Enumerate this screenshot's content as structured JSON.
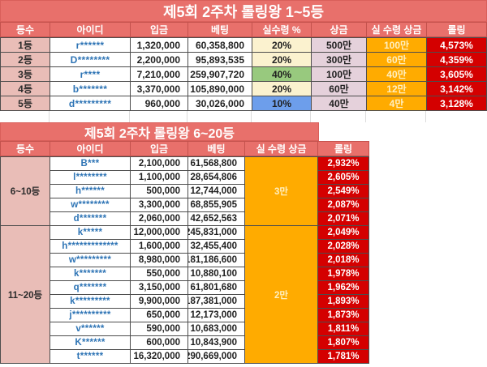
{
  "colors": {
    "band": "#E8706B",
    "rank_bg": "#E9BDB7",
    "prize_bg": "#E5D1DB",
    "net_bg": "#FFAB00",
    "rolling_bg": "#D40000",
    "id_text": "#2E74B5",
    "pct": {
      "cream": "#FBF2CF",
      "green": "#98C97E",
      "blue": "#6D9EEB"
    }
  },
  "table1": {
    "title": "제5회 2주차 롤링왕 1~5등",
    "headers": [
      "등수",
      "아이디",
      "입금",
      "베팅",
      "실수령 %",
      "상금",
      "실 수령 상금",
      "롤링"
    ],
    "rows": [
      {
        "rank": "1등",
        "id": "r******",
        "deposit": "1,320,000",
        "betting": "60,358,800",
        "pct": "20%",
        "pct_bg": "cream",
        "prize": "500만",
        "net": "100만",
        "rolling": "4,573%"
      },
      {
        "rank": "2등",
        "id": "D********",
        "deposit": "2,200,000",
        "betting": "95,893,535",
        "pct": "20%",
        "pct_bg": "cream",
        "prize": "300만",
        "net": "60만",
        "rolling": "4,359%"
      },
      {
        "rank": "3등",
        "id": "r****",
        "deposit": "7,210,000",
        "betting": "259,907,720",
        "pct": "40%",
        "pct_bg": "green",
        "prize": "100만",
        "net": "40만",
        "rolling": "3,605%"
      },
      {
        "rank": "4등",
        "id": "b*******",
        "deposit": "3,370,000",
        "betting": "105,890,000",
        "pct": "20%",
        "pct_bg": "cream",
        "prize": "60만",
        "net": "12만",
        "rolling": "3,142%"
      },
      {
        "rank": "5등",
        "id": "d*********",
        "deposit": "960,000",
        "betting": "30,026,000",
        "pct": "10%",
        "pct_bg": "blue",
        "prize": "40만",
        "net": "4만",
        "rolling": "3,128%"
      }
    ]
  },
  "table2": {
    "title": "제5회 2주차 롤링왕 6~20등",
    "headers": [
      "등수",
      "아이디",
      "입금",
      "베팅",
      "실 수령 상금",
      "롤링"
    ],
    "groups": [
      {
        "rank_label": "6~10등",
        "net": "3만",
        "rows": [
          {
            "id": "B***",
            "deposit": "2,100,000",
            "betting": "61,568,800",
            "rolling": "2,932%"
          },
          {
            "id": "l********",
            "deposit": "1,100,000",
            "betting": "28,654,806",
            "rolling": "2,605%"
          },
          {
            "id": "h******",
            "deposit": "500,000",
            "betting": "12,744,000",
            "rolling": "2,549%"
          },
          {
            "id": "w********",
            "deposit": "3,300,000",
            "betting": "68,855,905",
            "rolling": "2,087%"
          },
          {
            "id": "d*******",
            "deposit": "2,060,000",
            "betting": "42,652,563",
            "rolling": "2,071%"
          }
        ]
      },
      {
        "rank_label": "11~20등",
        "net": "2만",
        "rows": [
          {
            "id": "k*****",
            "deposit": "12,000,000",
            "betting": "245,831,000",
            "rolling": "2,049%"
          },
          {
            "id": "h*************",
            "deposit": "1,600,000",
            "betting": "32,455,400",
            "rolling": "2,028%"
          },
          {
            "id": "w*********",
            "deposit": "8,980,000",
            "betting": "181,186,600",
            "rolling": "2,018%"
          },
          {
            "id": "k*******",
            "deposit": "550,000",
            "betting": "10,880,100",
            "rolling": "1,978%"
          },
          {
            "id": "q*******",
            "deposit": "3,150,000",
            "betting": "61,801,680",
            "rolling": "1,962%"
          },
          {
            "id": "k*********",
            "deposit": "9,900,000",
            "betting": "187,381,000",
            "rolling": "1,893%"
          },
          {
            "id": "j**********",
            "deposit": "650,000",
            "betting": "12,173,000",
            "rolling": "1,873%"
          },
          {
            "id": "v******",
            "deposit": "590,000",
            "betting": "10,683,000",
            "rolling": "1,811%"
          },
          {
            "id": "K******",
            "deposit": "600,000",
            "betting": "10,843,900",
            "rolling": "1,807%"
          },
          {
            "id": "t******",
            "deposit": "16,320,000",
            "betting": "290,669,000",
            "rolling": "1,781%"
          }
        ]
      }
    ]
  }
}
